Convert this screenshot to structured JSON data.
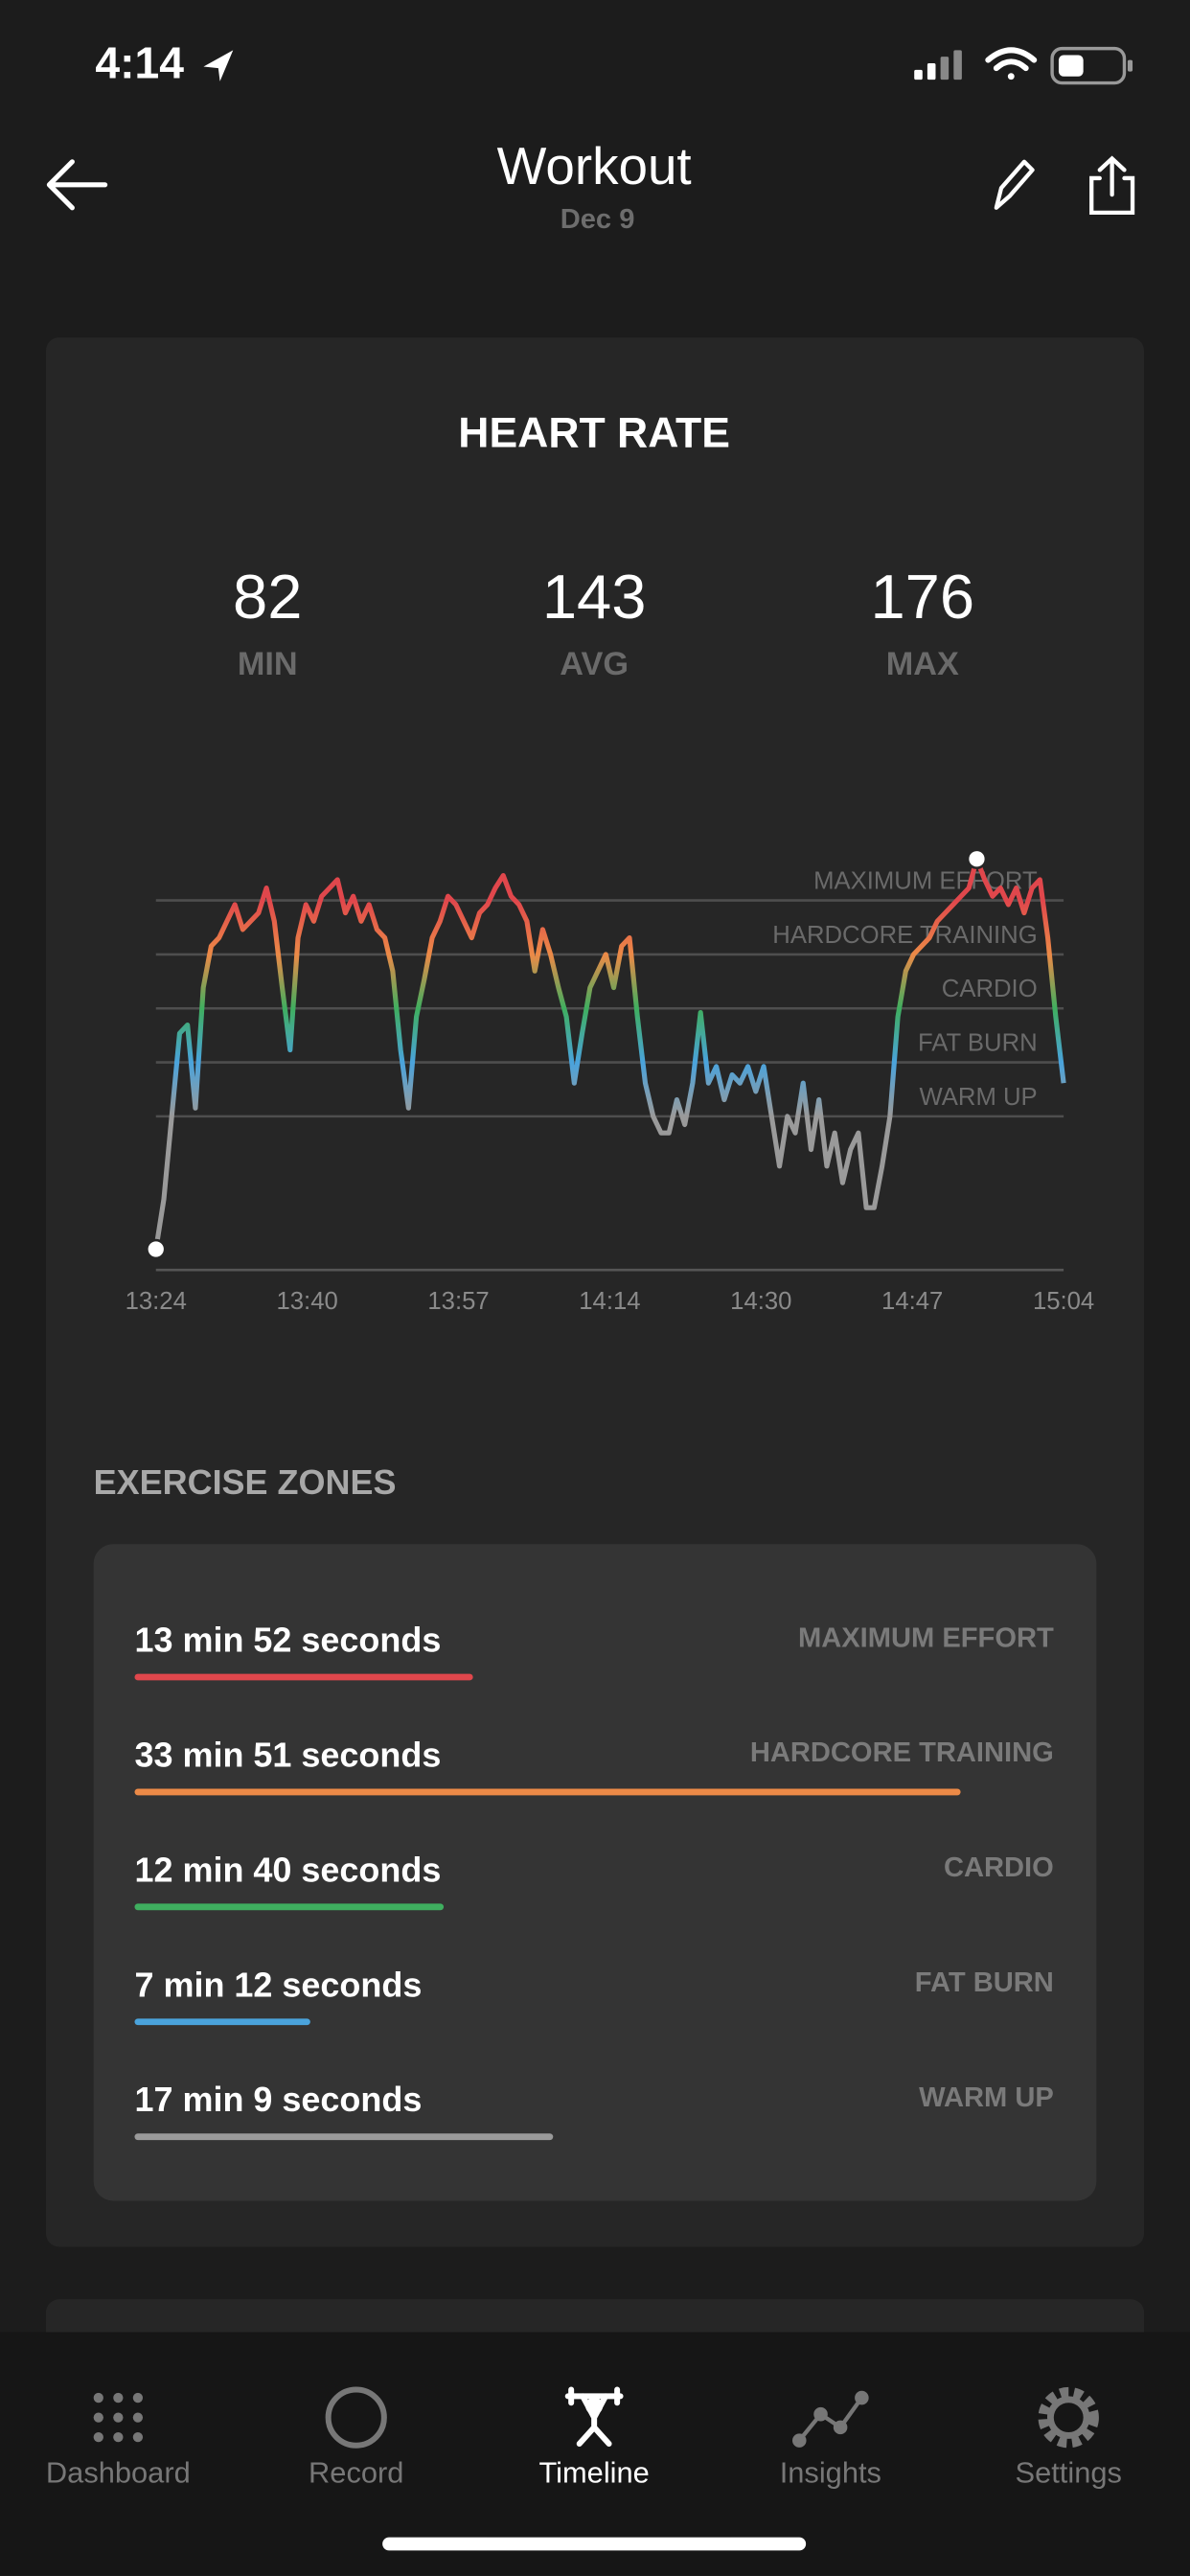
{
  "status_bar": {
    "time": "4:14"
  },
  "header": {
    "title": "Workout",
    "subtitle": "Dec 9"
  },
  "chart_data": {
    "type": "line",
    "title": "HEART RATE",
    "stats": [
      {
        "value": 82,
        "label": "MIN"
      },
      {
        "value": 143,
        "label": "AVG"
      },
      {
        "value": 176,
        "label": "MAX"
      }
    ],
    "x_labels": [
      "13:24",
      "13:40",
      "13:57",
      "14:14",
      "14:30",
      "14:47",
      "15:04"
    ],
    "values": [
      82,
      94,
      114,
      134,
      136,
      116,
      145,
      155,
      157,
      161,
      165,
      159,
      161,
      163,
      169,
      161,
      145,
      130,
      157,
      165,
      161,
      167,
      169,
      171,
      163,
      167,
      161,
      165,
      159,
      157,
      149,
      130,
      116,
      138,
      147,
      157,
      161,
      167,
      165,
      161,
      157,
      163,
      165,
      169,
      172,
      167,
      165,
      161,
      149,
      159,
      153,
      145,
      138,
      122,
      134,
      145,
      149,
      153,
      145,
      155,
      157,
      138,
      122,
      114,
      110,
      110,
      118,
      112,
      122,
      139,
      122,
      126,
      118,
      124,
      122,
      126,
      120,
      126,
      114,
      102,
      114,
      110,
      122,
      106,
      118,
      102,
      110,
      98,
      106,
      110,
      92,
      92,
      102,
      114,
      138,
      149,
      153,
      155,
      157,
      161,
      163,
      165,
      167,
      169,
      176,
      171,
      167,
      169,
      165,
      169,
      163,
      169,
      171,
      157,
      138,
      122
    ],
    "ylim": [
      77,
      181
    ],
    "grid": true,
    "zones": [
      {
        "label": "MAXIMUM EFFORT",
        "value": 166,
        "color": "#e0474c"
      },
      {
        "label": "HARDCORE TRAINING",
        "value": 153,
        "color": "#ec8a47"
      },
      {
        "label": "CARDIO",
        "value": 140,
        "color": "#3fae5f"
      },
      {
        "label": "FAT BURN",
        "value": 127,
        "color": "#4aa3dc"
      },
      {
        "label": "WARM UP",
        "value": 114,
        "color": "#9a9a9a"
      }
    ]
  },
  "exercise_zones": {
    "title": "EXERCISE ZONES",
    "xlim": [
      0,
      2260
    ],
    "items": [
      {
        "duration": "13 min 52 seconds",
        "seconds": 832,
        "label": "MAXIMUM EFFORT",
        "color": "#e0474c"
      },
      {
        "duration": "33 min 51 seconds",
        "seconds": 2031,
        "label": "HARDCORE TRAINING",
        "color": "#ec8a47"
      },
      {
        "duration": "12 min 40 seconds",
        "seconds": 760,
        "label": "CARDIO",
        "color": "#3fae5f"
      },
      {
        "duration": "7 min 12 seconds",
        "seconds": 432,
        "label": "FAT BURN",
        "color": "#4aa3dc"
      },
      {
        "duration": "17 min 9 seconds",
        "seconds": 1029,
        "label": "WARM UP",
        "color": "#9a9a9a"
      }
    ]
  },
  "tabs": [
    "Dashboard",
    "Record",
    "Timeline",
    "Insights",
    "Settings"
  ],
  "active_tab": 2
}
